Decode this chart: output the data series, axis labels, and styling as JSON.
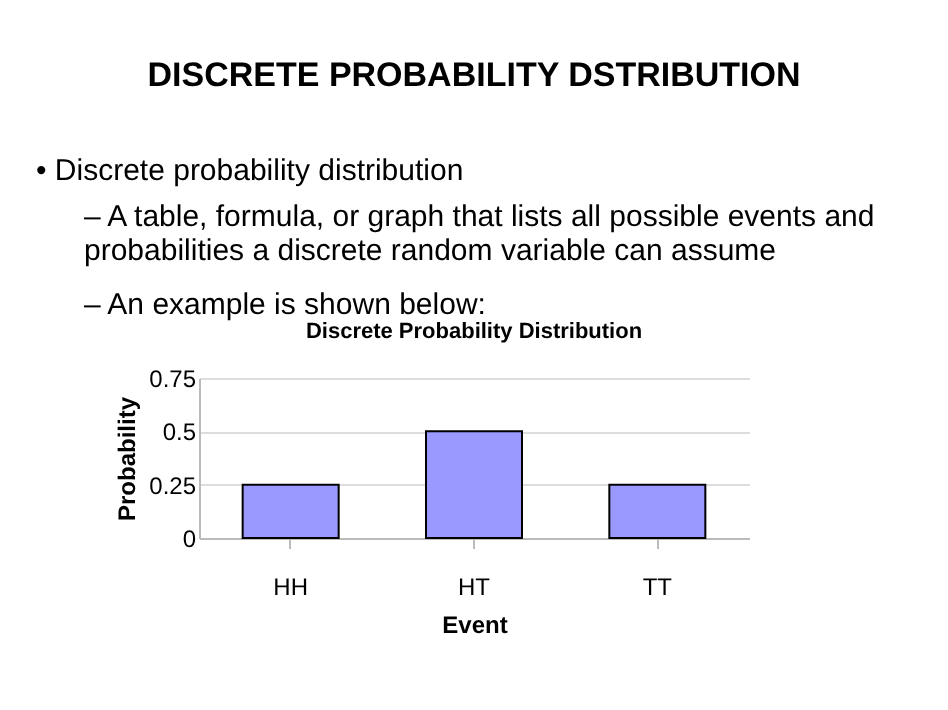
{
  "chart_data": {
    "type": "bar",
    "title": "DISCRETE PROBABILITY DSTRIBUTION",
    "annotations": [
      "• Discrete probability distribution",
      "– A table, formula, or graph that lists all possible events and\nprobabilities a discrete random variable can assume",
      "– An example is shown below:"
    ],
    "subtitle": "Discrete Probability Distribution",
    "xlabel": "Event",
    "ylabel": "Probability",
    "categories": [
      "HH",
      "HT",
      "TT"
    ],
    "values": [
      0.25,
      0.5,
      0.25
    ],
    "color": "#9999ff",
    "ylim": [
      0,
      0.75
    ],
    "yticks": [
      0,
      0.25,
      0.5,
      0.75
    ],
    "grid": "y"
  }
}
